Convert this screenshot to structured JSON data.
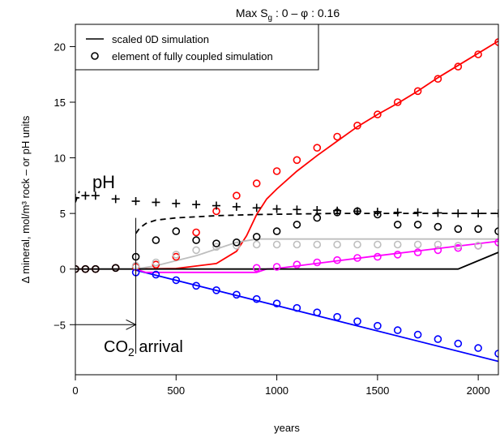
{
  "chart_data": {
    "type": "line",
    "title_prefix": "Max S",
    "title_sub": "g",
    "title_suffix": " : 0 – φ : 0.16",
    "xlabel": "years",
    "ylabel": "Δ mineral, mol/m³ rock – or pH units",
    "xlim": [
      0,
      2100
    ],
    "ylim": [
      -9.5,
      22
    ],
    "x_ticks": [
      0,
      500,
      1000,
      1500,
      2000
    ],
    "y_ticks": [
      -5,
      0,
      5,
      10,
      15,
      20
    ],
    "x_tick_labels": [
      "0",
      "500",
      "1000",
      "1500",
      "2000"
    ],
    "y_tick_labels": [
      "−5",
      "0",
      "5",
      "10",
      "15",
      "20"
    ],
    "grid": false,
    "legend": {
      "placement": "top-left",
      "entries": [
        {
          "label": "scaled 0D simulation",
          "marker": "line"
        },
        {
          "label": "element of fully coupled simulation",
          "marker": "circle"
        }
      ]
    },
    "annotations": {
      "ph_label": "pH",
      "co2_prefix": "CO",
      "co2_sub": "2",
      "co2_suffix": " arrival",
      "co2_arrival_x": 300,
      "co2_arrow_y": -5
    },
    "lines": [
      {
        "color": "#ff0000",
        "dash": "solid",
        "x": [
          300,
          500,
          700,
          800,
          850,
          900,
          950,
          1000,
          1100,
          1200,
          1300,
          1400,
          1500,
          1600,
          1700,
          1800,
          1900,
          2000,
          2100
        ],
        "y": [
          0,
          0.05,
          0.5,
          1.6,
          3,
          4.9,
          6.3,
          7.2,
          8.8,
          10.2,
          11.5,
          12.8,
          13.9,
          14.9,
          16,
          17.2,
          18.3,
          19.4,
          20.5
        ]
      },
      {
        "color": "#0000ff",
        "dash": "solid",
        "x": [
          300,
          2100
        ],
        "y": [
          -0.1,
          -8.3
        ]
      },
      {
        "color": "#ff00ff",
        "dash": "solid",
        "x": [
          300,
          350,
          900,
          950,
          1000,
          1500,
          2100
        ],
        "y": [
          0,
          -0.3,
          -0.3,
          0,
          0.05,
          1.2,
          2.5
        ]
      },
      {
        "color": "#bebebe",
        "dash": "solid",
        "x": [
          300,
          400,
          500,
          600,
          700,
          800,
          900,
          1000,
          1100,
          1500,
          2100
        ],
        "y": [
          0,
          0.3,
          0.75,
          1.2,
          1.8,
          2.4,
          2.7,
          2.7,
          2.7,
          2.7,
          2.7
        ]
      },
      {
        "color": "#000000",
        "dash": "solid",
        "x": [
          0,
          300,
          1900,
          2100
        ],
        "y": [
          0,
          0,
          0,
          1.5
        ]
      },
      {
        "color": "#000000",
        "dash": "dashed",
        "x": [
          300,
          320,
          350,
          400,
          500,
          600,
          700,
          900,
          1100,
          1300,
          1500,
          1700,
          1900,
          2100
        ],
        "y": [
          3.2,
          3.7,
          4.1,
          4.4,
          4.6,
          4.7,
          4.8,
          4.9,
          4.95,
          5.0,
          5.0,
          5.0,
          5.0,
          5.0
        ]
      },
      {
        "color": "#000000",
        "dash": "dashed",
        "x": [
          0,
          20
        ],
        "y": [
          6.0,
          7.0
        ]
      }
    ],
    "point_series": [
      {
        "color": "#ff0000",
        "marker": "circle",
        "x": [
          0,
          50,
          100,
          200,
          300,
          400,
          500,
          600,
          700,
          800,
          900,
          1000,
          1100,
          1200,
          1300,
          1400,
          1500,
          1600,
          1700,
          1800,
          1900,
          2000,
          2100
        ],
        "y": [
          0,
          0,
          0,
          0.1,
          0.2,
          0.4,
          1.1,
          3.3,
          5.2,
          6.6,
          7.7,
          8.8,
          9.8,
          10.9,
          11.9,
          12.9,
          13.9,
          15.0,
          16.0,
          17.1,
          18.2,
          19.3,
          20.4
        ]
      },
      {
        "color": "#0000ff",
        "marker": "circle",
        "x": [
          300,
          400,
          500,
          600,
          700,
          800,
          900,
          1000,
          1100,
          1200,
          1300,
          1400,
          1500,
          1600,
          1700,
          1800,
          1900,
          2000,
          2100
        ],
        "y": [
          -0.3,
          -0.5,
          -1.0,
          -1.5,
          -1.9,
          -2.3,
          -2.7,
          -3.1,
          -3.5,
          -3.9,
          -4.3,
          -4.7,
          -5.1,
          -5.5,
          -5.9,
          -6.3,
          -6.7,
          -7.1,
          -7.6
        ]
      },
      {
        "color": "#ff00ff",
        "marker": "circle",
        "x": [
          900,
          1000,
          1100,
          1200,
          1300,
          1400,
          1500,
          1600,
          1700,
          1800,
          1900,
          2000,
          2100
        ],
        "y": [
          0.1,
          0.2,
          0.4,
          0.6,
          0.8,
          1.0,
          1.1,
          1.3,
          1.5,
          1.7,
          1.9,
          2.1,
          2.4
        ]
      },
      {
        "color": "#bebebe",
        "marker": "circle",
        "x": [
          300,
          400,
          500,
          600,
          700,
          800,
          900,
          1000,
          1100,
          1200,
          1300,
          1400,
          1500,
          1600,
          1700,
          1800,
          1900,
          2000
        ],
        "y": [
          0.3,
          0.6,
          1.3,
          1.7,
          2.0,
          2.1,
          2.2,
          2.2,
          2.2,
          2.2,
          2.2,
          2.2,
          2.2,
          2.2,
          2.2,
          2.2,
          2.1,
          2.1
        ]
      },
      {
        "color": "#000000",
        "marker": "circle",
        "x": [
          0,
          50,
          100,
          200,
          300,
          400,
          500,
          600,
          700,
          800,
          900,
          1000,
          1100,
          1200,
          1300,
          1400,
          1500,
          1600,
          1700,
          1800,
          1900,
          2000,
          2100
        ],
        "y": [
          0,
          0,
          0,
          0.1,
          1.1,
          2.6,
          3.4,
          2.6,
          2.3,
          2.4,
          2.9,
          3.4,
          4.0,
          4.6,
          5.1,
          5.2,
          4.9,
          4.0,
          4.0,
          3.8,
          3.6,
          3.6,
          3.4
        ]
      },
      {
        "color": "#000000",
        "marker": "plus",
        "x": [
          0,
          50,
          100,
          200,
          300,
          400,
          500,
          600,
          700,
          800,
          900,
          1000,
          1100,
          1200,
          1300,
          1400,
          1500,
          1600,
          1700,
          1800,
          1900,
          2000,
          2100
        ],
        "y": [
          6.4,
          6.6,
          6.6,
          6.3,
          6.1,
          6.0,
          5.9,
          5.8,
          5.7,
          5.6,
          5.5,
          5.4,
          5.35,
          5.3,
          5.25,
          5.2,
          5.15,
          5.1,
          5.1,
          5.05,
          5.0,
          5.0,
          5.0
        ]
      }
    ]
  }
}
